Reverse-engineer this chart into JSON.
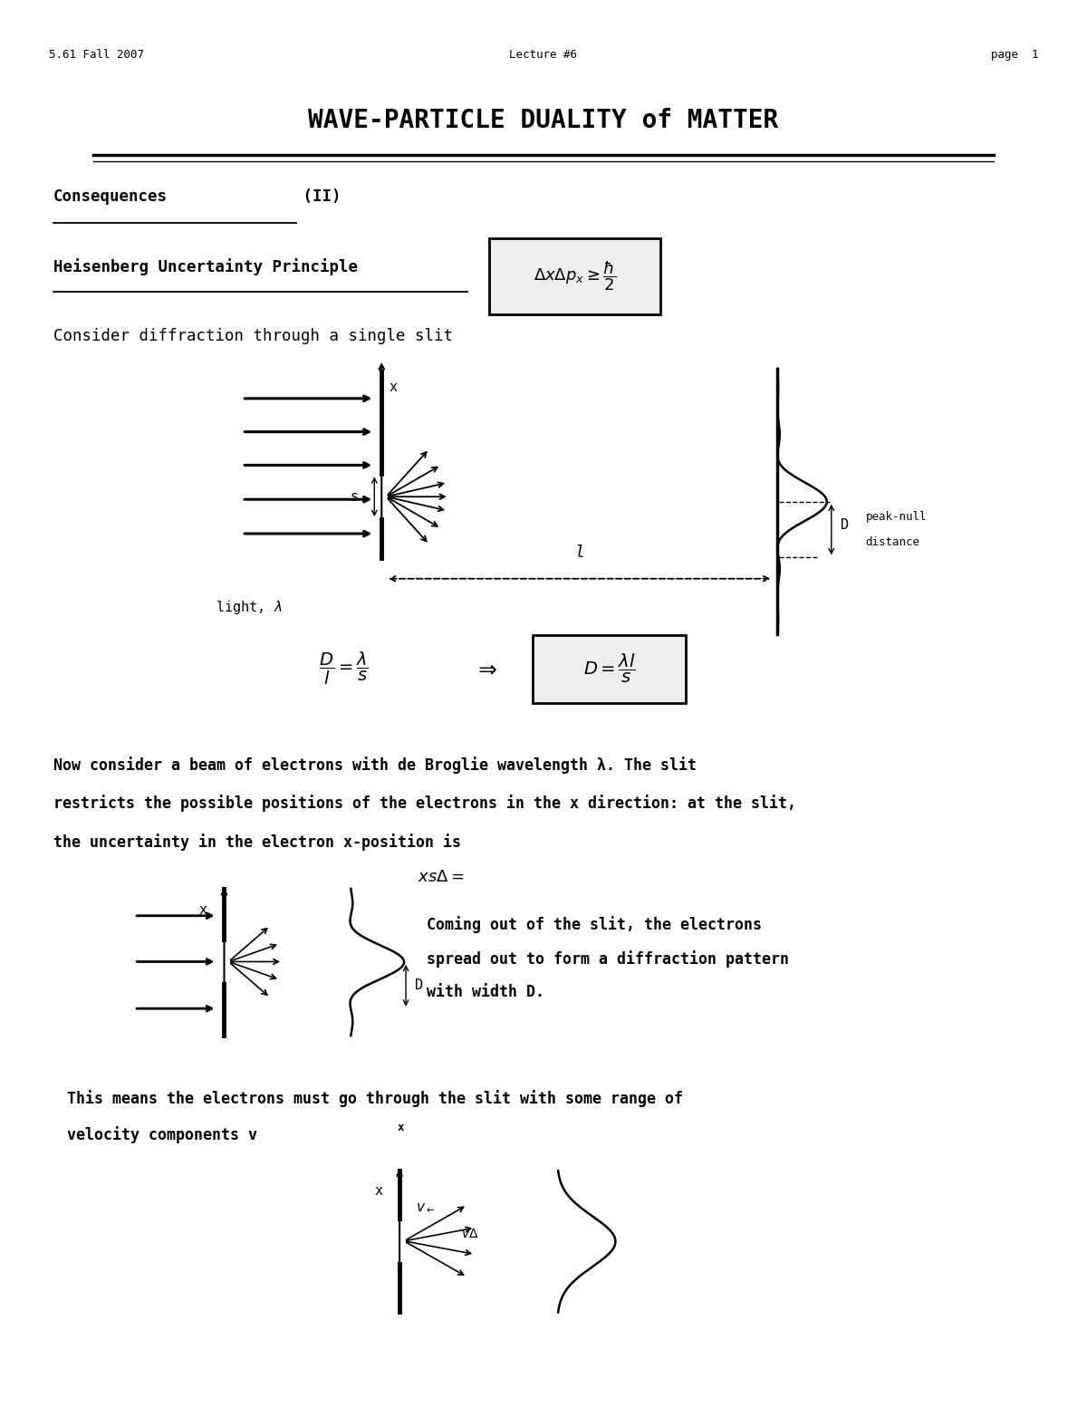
{
  "page_width": 12.0,
  "page_height": 15.53,
  "bg_color": "#ffffff",
  "header_left": "5.61 Fall 2007",
  "header_center": "Lecture #6",
  "header_right": "page  1",
  "title": "WAVE-PARTICLE DUALITY of MATTER",
  "consequences_text": "Consequences",
  "consequences_paren": " (II)",
  "heisenberg_text": "Heisenberg Uncertainty Principle",
  "consider_text": "Consider diffraction through a single slit",
  "now_consider_line1": "Now consider a beam of electrons with de Broglie wavelength λ. The slit",
  "now_consider_line2": "restricts the possible positions of the electrons in the x direction: at the slit,",
  "now_consider_line3": "the uncertainty in the electron x-position is",
  "xs_delta": "xsΔ=",
  "coming_out_line1": "Coming out of the slit, the electrons",
  "coming_out_line2": "spread out to form a diffraction pattern",
  "coming_out_line3": "with width D.",
  "this_means_line1": "This means the electrons must go through the slit with some range of",
  "this_means_line2": "velocity components v",
  "this_means_sub": "x"
}
